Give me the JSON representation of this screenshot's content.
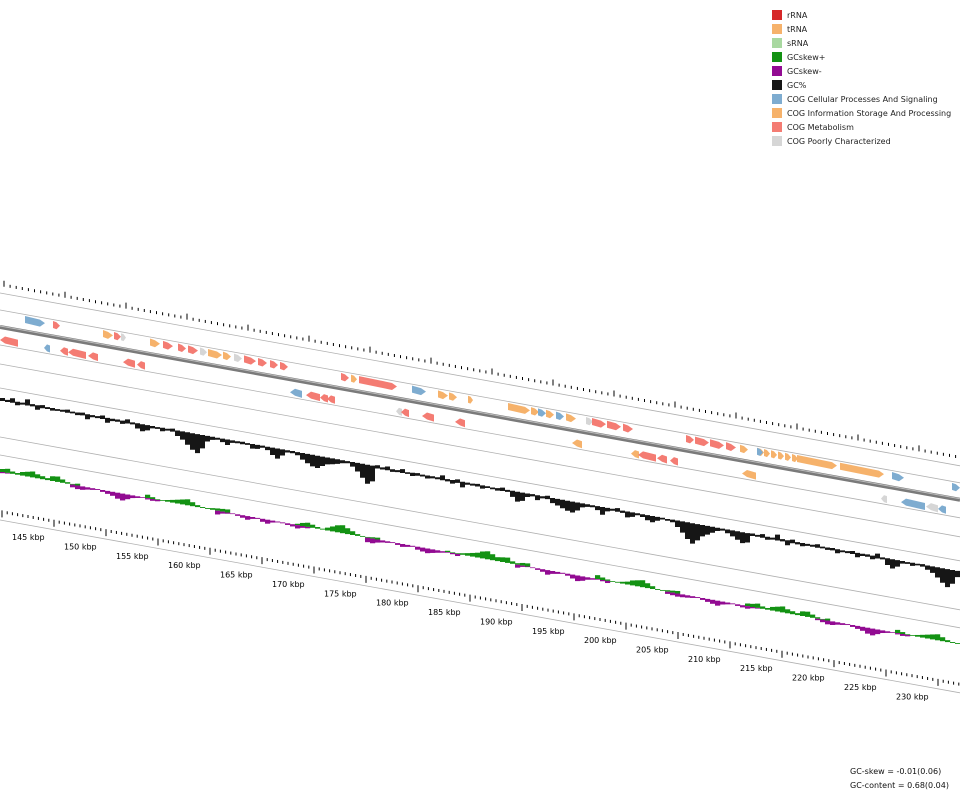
{
  "legend": {
    "items": [
      {
        "label": "rRNA",
        "color": "#d62728"
      },
      {
        "label": "tRNA",
        "color": "#f6b26b"
      },
      {
        "label": "sRNA",
        "color": "#a8d8a0"
      },
      {
        "label": "GCskew+",
        "color": "#139213"
      },
      {
        "label": "GCskew-",
        "color": "#920b92"
      },
      {
        "label": "GC%",
        "color": "#161616"
      },
      {
        "label": "COG Cellular Processes And Signaling",
        "color": "#7eacd0"
      },
      {
        "label": "COG Information Storage And Processing",
        "color": "#f6b26b"
      },
      {
        "label": "COG Metabolism",
        "color": "#f47c73"
      },
      {
        "label": "COG Poorly Characterized",
        "color": "#d6d6d6"
      }
    ]
  },
  "stats": {
    "gc_skew": "GC-skew = -0.01(0.06)",
    "gc_content": "GC-content = 0.68(0.04)"
  },
  "axis": {
    "kbp_labels": [
      "145 kbp",
      "150 kbp",
      "155 kbp",
      "160 kbp",
      "165 kbp",
      "170 kbp",
      "175 kbp",
      "180 kbp",
      "185 kbp",
      "190 kbp",
      "195 kbp",
      "200 kbp",
      "205 kbp",
      "210 kbp",
      "215 kbp",
      "220 kbp",
      "225 kbp",
      "230 kbp"
    ]
  },
  "colors": {
    "backbone": "#7a7a7a",
    "guide": "#b0b0b0",
    "tick": "#000000"
  }
}
